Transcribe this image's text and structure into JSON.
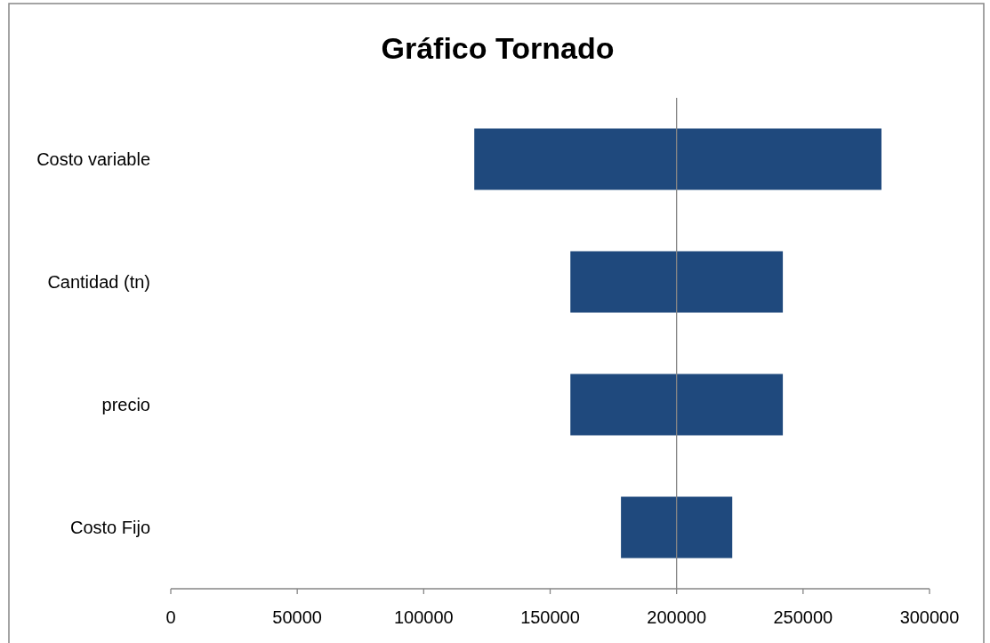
{
  "chart_data": {
    "type": "bar",
    "title": "Gráfico Tornado",
    "orientation": "horizontal",
    "categories": [
      "Costo variable",
      "Cantidad (tn)",
      "precio",
      "Costo Fijo"
    ],
    "base": [
      120000,
      158000,
      158000,
      178000
    ],
    "values": [
      161000,
      84000,
      84000,
      44000
    ],
    "color": "#1f497d",
    "xlim": [
      0,
      300000
    ],
    "xticks": [
      0,
      50000,
      100000,
      150000,
      200000,
      250000,
      300000
    ],
    "ref_lines": [
      {
        "axis": "x",
        "value": 200000,
        "color": "#868686"
      }
    ],
    "tick_labels": true
  }
}
